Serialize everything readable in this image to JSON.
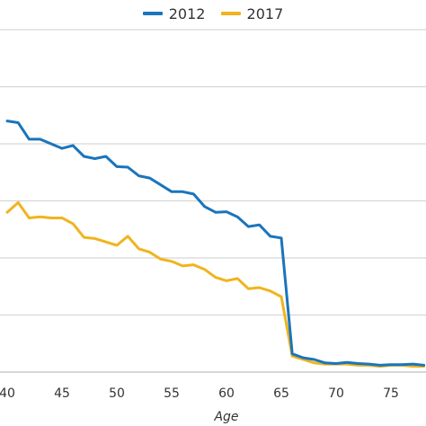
{
  "chart_data": {
    "type": "line",
    "xlabel": "Age",
    "ylabel": "",
    "xlim": [
      40,
      78
    ],
    "ylim": [
      0,
      6
    ],
    "grid": true,
    "legend_position": "top-center",
    "x_ticks": [
      40,
      45,
      50,
      55,
      60,
      65,
      70,
      75
    ],
    "x": [
      40,
      41,
      42,
      43,
      44,
      45,
      46,
      47,
      48,
      49,
      50,
      51,
      52,
      53,
      54,
      55,
      56,
      57,
      58,
      59,
      60,
      61,
      62,
      63,
      64,
      65,
      66,
      67,
      68,
      69,
      70,
      71,
      72,
      73,
      74,
      75,
      76,
      77,
      78
    ],
    "series": [
      {
        "name": "2012",
        "color": "#1a75bc",
        "values": [
          4.4,
          4.37,
          4.08,
          4.08,
          4.0,
          3.92,
          3.97,
          3.78,
          3.74,
          3.78,
          3.6,
          3.59,
          3.44,
          3.4,
          3.28,
          3.16,
          3.16,
          3.12,
          2.9,
          2.8,
          2.81,
          2.72,
          2.55,
          2.58,
          2.38,
          2.35,
          0.32,
          0.25,
          0.22,
          0.16,
          0.15,
          0.17,
          0.15,
          0.14,
          0.12,
          0.13,
          0.13,
          0.14,
          0.12
        ]
      },
      {
        "name": "2017",
        "color": "#f0b41e",
        "values": [
          2.8,
          2.97,
          2.7,
          2.72,
          2.7,
          2.7,
          2.6,
          2.36,
          2.34,
          2.28,
          2.22,
          2.38,
          2.16,
          2.1,
          1.98,
          1.94,
          1.86,
          1.88,
          1.8,
          1.66,
          1.6,
          1.64,
          1.46,
          1.48,
          1.42,
          1.32,
          0.28,
          0.22,
          0.16,
          0.14,
          0.14,
          0.14,
          0.12,
          0.12,
          0.1,
          0.12,
          0.12,
          0.1,
          0.1
        ]
      }
    ]
  }
}
